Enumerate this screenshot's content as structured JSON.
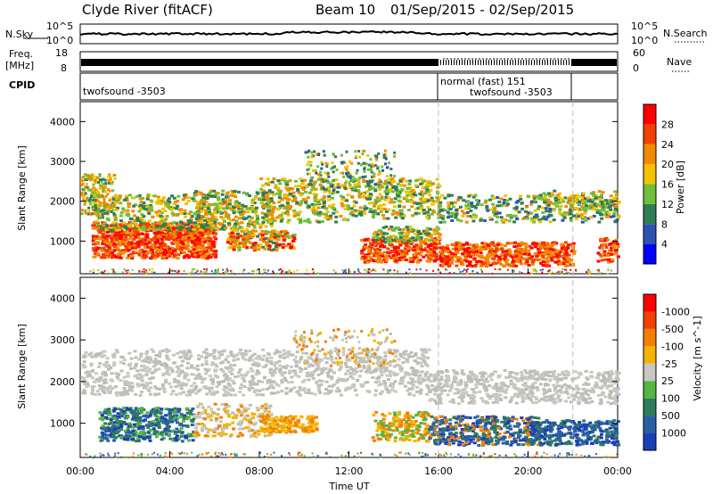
{
  "header": {
    "title": "Clyde River (fitACF)",
    "beam": "Beam 10",
    "date_range": "01/Sep/2015 - 02/Sep/2015"
  },
  "nsky_panel": {
    "left_label": "N.Sky",
    "left_ticks": [
      "10^5",
      "10^0"
    ],
    "right_label": "N.Search",
    "right_ticks": [
      "10^5",
      "10^0"
    ]
  },
  "freq_panel": {
    "left_label_1": "Freq.",
    "left_label_2": "[MHz]",
    "left_ticks": [
      "18",
      "8"
    ],
    "right_label": "Nave",
    "right_ticks": [
      "60",
      "0"
    ]
  },
  "cpid_panel": {
    "label": "CPID",
    "seg1": "twofsound -3503",
    "seg2": "normal (fast) 151",
    "seg3": "twofsound -3503"
  },
  "chart_data": [
    {
      "type": "heatmap",
      "name": "power",
      "ylabel": "Slant Range [km]",
      "yticks": [
        1000,
        2000,
        3000,
        4000
      ],
      "ylim": [
        180,
        4500
      ],
      "x_hours": [
        0,
        24
      ],
      "colorbar": {
        "label": "Power [dB]",
        "ticks": [
          "4",
          "8",
          "12",
          "16",
          "20",
          "24",
          "28"
        ],
        "colors": [
          "#0000ff",
          "#2e52b2",
          "#2f7d56",
          "#6fbf3b",
          "#f2c200",
          "#f28a00",
          "#f24000",
          "#ff0000"
        ]
      }
    },
    {
      "type": "heatmap",
      "name": "velocity",
      "ylabel": "Slant Range [km]",
      "yticks": [
        1000,
        2000,
        3000,
        4000
      ],
      "ylim": [
        180,
        4500
      ],
      "x_hours": [
        0,
        24
      ],
      "xticks": [
        "00:00",
        "04:00",
        "08:00",
        "12:00",
        "16:00",
        "20:00",
        "00:00"
      ],
      "xlabel": "Time UT",
      "colorbar": {
        "label": "Velocity [m s^-1]",
        "ticks": [
          "1000",
          "500",
          "100",
          "25",
          "-25",
          "-100",
          "-500",
          "-1000"
        ],
        "colors": [
          "#1a3fb8",
          "#2a5fa8",
          "#2e7d5a",
          "#55b540",
          "#c8c8c0",
          "#f2b400",
          "#f28000",
          "#f24000",
          "#ff0000"
        ]
      }
    }
  ],
  "markers": {
    "dashed_hours": [
      16,
      22
    ]
  }
}
